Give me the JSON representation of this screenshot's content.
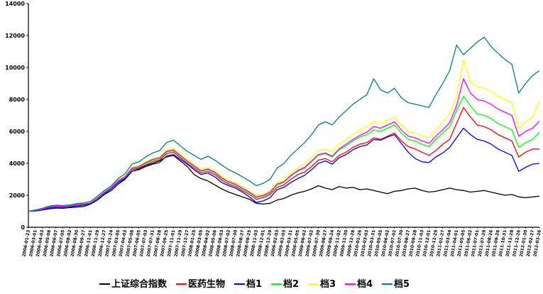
{
  "chart_data": {
    "type": "line",
    "title": "",
    "xlabel": "",
    "ylabel": "",
    "ylim": [
      0,
      14000
    ],
    "y_ticks": [
      "0",
      "2000",
      "4000",
      "6000",
      "8000",
      "10000",
      "12000",
      "14000"
    ],
    "y_tick_values": [
      0,
      2000,
      4000,
      6000,
      8000,
      10000,
      12000,
      14000
    ],
    "grid": false,
    "legend_position": "bottom",
    "x_dates": [
      "2006-01-23",
      "2006-03-01",
      "2006-04-03",
      "2006-05-08",
      "2006-06-07",
      "2006-07-05",
      "2006-08-02",
      "2006-08-30",
      "2006-09-27",
      "2006-11-01",
      "2006-11-29",
      "2006-12-27",
      "2007-01-24",
      "2007-03-05",
      "2007-04-03",
      "2007-05-08",
      "2007-06-05",
      "2007-07-03",
      "2007-07-31",
      "2007-08-28",
      "2007-09-25",
      "2007-11-01",
      "2007-11-29",
      "2007-12-27",
      "2008-01-25",
      "2008-03-05",
      "2008-04-02",
      "2008-05-06",
      "2008-06-03",
      "2008-07-02",
      "2008-07-30",
      "2008-08-27",
      "2008-09-25",
      "2008-11-03",
      "2008-12-01",
      "2008-12-29",
      "2009-02-03",
      "2009-03-03",
      "2009-03-31",
      "2009-05-05",
      "2009-06-02",
      "2009-07-02",
      "2009-07-30",
      "2009-08-27",
      "2009-09-24",
      "2009-11-02",
      "2009-11-30",
      "2009-12-28",
      "2010-01-26",
      "2010-03-03",
      "2010-03-31",
      "2010-05-05",
      "2010-06-02",
      "2010-07-02",
      "2010-07-30",
      "2010-08-27",
      "2010-09-28",
      "2010-11-03",
      "2010-12-01",
      "2010-12-29",
      "2011-01-27",
      "2011-03-04",
      "2011-04-01",
      "2011-05-05",
      "2011-06-02",
      "2011-07-01",
      "2011-07-29",
      "2011-08-26",
      "2011-09-26",
      "2011-10-31",
      "2011-11-28",
      "2011-12-26",
      "2012-01-30",
      "2012-02-27",
      "2012-03-26"
    ],
    "series": [
      {
        "name": "上证综合指数",
        "color": "#000000",
        "values": [
          1000,
          1020,
          1080,
          1150,
          1200,
          1180,
          1230,
          1260,
          1300,
          1450,
          1700,
          2050,
          2300,
          2700,
          3000,
          3500,
          3650,
          3850,
          4000,
          4150,
          4400,
          4500,
          4150,
          3800,
          3300,
          3050,
          2900,
          2650,
          2400,
          2200,
          2050,
          1900,
          1750,
          1500,
          1450,
          1500,
          1700,
          1800,
          2000,
          2150,
          2250,
          2400,
          2600,
          2450,
          2350,
          2550,
          2450,
          2500,
          2350,
          2400,
          2300,
          2200,
          2100,
          2250,
          2300,
          2400,
          2450,
          2300,
          2200,
          2250,
          2350,
          2450,
          2350,
          2300,
          2200,
          2250,
          2300,
          2200,
          2100,
          2000,
          2050,
          1900,
          1850,
          1900,
          1950
        ]
      },
      {
        "name": "医药生物",
        "color": "#ff0000",
        "values": [
          1000,
          1050,
          1120,
          1250,
          1300,
          1280,
          1320,
          1380,
          1420,
          1500,
          1800,
          2150,
          2450,
          2850,
          3100,
          3600,
          3700,
          3900,
          4100,
          4200,
          4600,
          4700,
          4350,
          4000,
          3700,
          3400,
          3500,
          3300,
          2950,
          2700,
          2550,
          2300,
          2050,
          1750,
          1850,
          2050,
          2500,
          2650,
          3000,
          3300,
          3450,
          3800,
          4200,
          4300,
          4100,
          4500,
          4700,
          5000,
          5200,
          5300,
          5600,
          5500,
          5700,
          5900,
          5400,
          5050,
          4900,
          4700,
          4500,
          4800,
          5200,
          5500,
          6500,
          7500,
          6900,
          6400,
          6300,
          6100,
          5800,
          5600,
          5400,
          4400,
          4700,
          4900,
          4900
        ]
      },
      {
        "name": "档1",
        "color": "#0000ff",
        "values": [
          1000,
          1040,
          1100,
          1220,
          1250,
          1230,
          1280,
          1330,
          1380,
          1480,
          1780,
          2100,
          2400,
          2800,
          3050,
          3500,
          3600,
          3800,
          3950,
          4050,
          4450,
          4550,
          4250,
          3950,
          3600,
          3300,
          3400,
          3150,
          2800,
          2600,
          2450,
          2200,
          1900,
          1550,
          1650,
          1850,
          2350,
          2500,
          2800,
          3050,
          3250,
          3600,
          4000,
          4150,
          3950,
          4350,
          4550,
          4850,
          5050,
          5150,
          5500,
          5450,
          5650,
          5800,
          5250,
          4700,
          4300,
          4100,
          4050,
          4400,
          4650,
          5000,
          5600,
          6200,
          5800,
          5500,
          5400,
          5200,
          4900,
          4700,
          4500,
          3500,
          3750,
          3950,
          4000
        ]
      },
      {
        "name": "档2",
        "color": "#00ff00",
        "values": [
          1000,
          1060,
          1140,
          1260,
          1310,
          1290,
          1330,
          1400,
          1440,
          1520,
          1820,
          2170,
          2470,
          2880,
          3130,
          3650,
          3750,
          3980,
          4180,
          4280,
          4700,
          4800,
          4450,
          4100,
          3800,
          3500,
          3600,
          3400,
          3050,
          2800,
          2650,
          2400,
          2150,
          1850,
          1950,
          2150,
          2650,
          2800,
          3200,
          3500,
          3700,
          4100,
          4500,
          4600,
          4400,
          4850,
          5100,
          5400,
          5650,
          5800,
          6100,
          6000,
          6200,
          6400,
          5900,
          5500,
          5400,
          5200,
          5050,
          5500,
          5900,
          6300,
          7300,
          8200,
          7600,
          7100,
          7000,
          6800,
          6500,
          6300,
          6100,
          5000,
          5300,
          5500,
          5950
        ]
      },
      {
        "name": "档3",
        "color": "#ffff00",
        "values": [
          1000,
          1070,
          1160,
          1290,
          1340,
          1320,
          1360,
          1430,
          1470,
          1560,
          1860,
          2220,
          2520,
          2950,
          3200,
          3750,
          3850,
          4100,
          4300,
          4400,
          4850,
          4950,
          4600,
          4250,
          3950,
          3650,
          3750,
          3550,
          3200,
          2950,
          2800,
          2550,
          2300,
          2000,
          2100,
          2300,
          2800,
          3000,
          3400,
          3700,
          3950,
          4400,
          4800,
          4900,
          4700,
          5200,
          5500,
          5800,
          6100,
          6300,
          6600,
          6500,
          6700,
          6900,
          6400,
          6000,
          5900,
          5700,
          5600,
          6100,
          6600,
          7100,
          8200,
          10500,
          9100,
          8800,
          8700,
          8500,
          8200,
          8000,
          7800,
          6200,
          6600,
          6900,
          7900
        ]
      },
      {
        "name": "档4",
        "color": "#ff00ff",
        "values": [
          1000,
          1060,
          1130,
          1270,
          1320,
          1300,
          1340,
          1410,
          1450,
          1530,
          1840,
          2200,
          2500,
          2920,
          3170,
          3700,
          3800,
          4050,
          4250,
          4350,
          4750,
          4850,
          4500,
          4150,
          3850,
          3550,
          3650,
          3450,
          3100,
          2850,
          2700,
          2450,
          2200,
          1900,
          2000,
          2200,
          2700,
          2850,
          3250,
          3550,
          3750,
          4150,
          4550,
          4650,
          4450,
          4900,
          5200,
          5500,
          5750,
          5950,
          6300,
          6200,
          6400,
          6600,
          6100,
          5700,
          5600,
          5400,
          5250,
          5700,
          6100,
          6550,
          7600,
          9300,
          8400,
          8000,
          7900,
          7700,
          7400,
          7200,
          7000,
          5700,
          6000,
          6200,
          6650
        ]
      },
      {
        "name": "档5",
        "color": "#008080",
        "values": [
          1000,
          1080,
          1180,
          1320,
          1380,
          1360,
          1400,
          1480,
          1520,
          1620,
          1950,
          2300,
          2600,
          3050,
          3350,
          3950,
          4100,
          4400,
          4650,
          4800,
          5300,
          5450,
          5100,
          4750,
          4500,
          4250,
          4450,
          4200,
          3900,
          3600,
          3400,
          3150,
          2900,
          2600,
          2750,
          3000,
          3700,
          4000,
          4500,
          4900,
          5300,
          5800,
          6400,
          6600,
          6400,
          6900,
          7300,
          7700,
          8000,
          8300,
          9300,
          8600,
          8400,
          8700,
          8100,
          7800,
          7700,
          7600,
          7500,
          8300,
          9000,
          9800,
          11400,
          10800,
          11200,
          11600,
          11900,
          11300,
          10900,
          10500,
          10200,
          8400,
          9000,
          9500,
          9800
        ]
      }
    ]
  }
}
